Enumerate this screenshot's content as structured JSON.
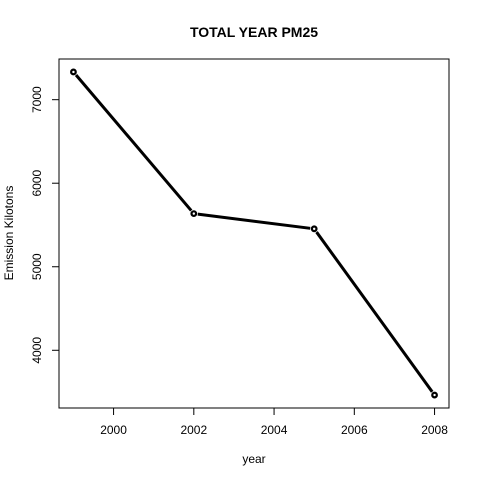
{
  "chart_data": {
    "type": "line",
    "title": "TOTAL YEAR PM25",
    "xlabel": "year",
    "ylabel": "Emission Kilotons",
    "x": [
      1999,
      2002,
      2005,
      2008
    ],
    "series": [
      {
        "values": [
          7332,
          5636,
          5454,
          3464
        ]
      }
    ],
    "xlim": [
      1998.64,
      2008.36
    ],
    "ylim": [
      3309,
      7487
    ],
    "x_ticks": [
      2000,
      2002,
      2004,
      2006,
      2008
    ],
    "y_ticks": [
      4000,
      5000,
      6000,
      7000
    ],
    "grid": false,
    "legend": "none",
    "line_color": "#000000",
    "marker": "circle"
  }
}
